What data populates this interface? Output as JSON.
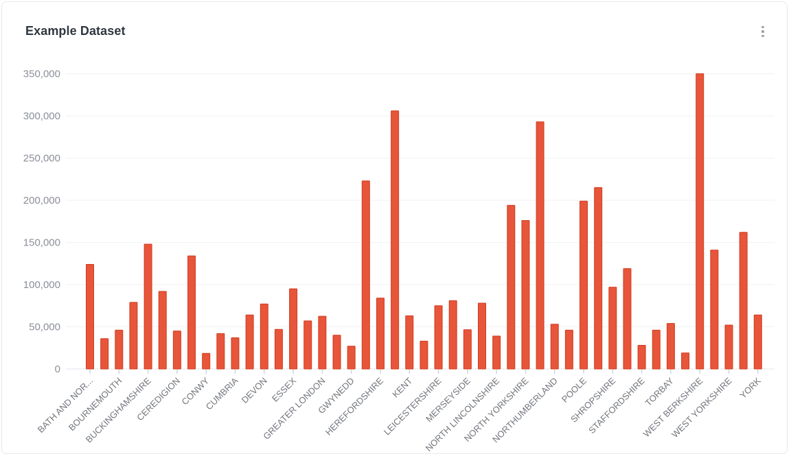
{
  "card": {
    "title": "Example Dataset",
    "menu_icon": "kebab-vertical-icon"
  },
  "chart_data": {
    "type": "bar",
    "title": "Example Dataset",
    "xlabel": "",
    "ylabel": "",
    "grid": true,
    "legend": "none",
    "x_label_rotation": -45,
    "x_label_step_note": "only every other category is labeled on the axis",
    "categories": [
      "BATH AND NOR...",
      "",
      "BOURNEMOUTH",
      "",
      "BUCKINGHAMSHIRE",
      "",
      "CEREDIGION",
      "",
      "CONWY",
      "",
      "CUMBRIA",
      "",
      "DEVON",
      "",
      "ESSEX",
      "",
      "GREATER LONDON",
      "",
      "GWYNEDD",
      "",
      "HEREFORDSHIRE",
      "",
      "KENT",
      "",
      "LEICESTERSHIRE",
      "",
      "MERSEYSIDE",
      "",
      "NORTH LINCOLNSHIRE",
      "",
      "NORTH YORKSHIRE",
      "",
      "NORTHUMBERLAND",
      "",
      "POOLE",
      "",
      "SHROPSHIRE",
      "",
      "STAFFORDSHIRE",
      "",
      "TORBAY",
      "",
      "WEST BERKSHIRE",
      "",
      "WEST YORKSHIRE",
      "",
      "YORK"
    ],
    "values": [
      124000,
      36000,
      46000,
      79000,
      148000,
      92000,
      45000,
      134000,
      18500,
      42000,
      37000,
      64000,
      77000,
      47000,
      95000,
      57000,
      62500,
      40000,
      27000,
      223000,
      84000,
      306000,
      63000,
      33000,
      75000,
      81000,
      46500,
      78000,
      39000,
      194000,
      176000,
      293000,
      53000,
      46000,
      199000,
      215000,
      97000,
      119000,
      28000,
      46000,
      54000,
      19000,
      350000,
      141000,
      52000,
      162000,
      64000
    ],
    "y_axis": {
      "min": 0,
      "max": 350000,
      "ticks": [
        0,
        50000,
        100000,
        150000,
        200000,
        250000,
        300000,
        350000
      ],
      "tick_labels": [
        "0",
        "50,000",
        "100,000",
        "150,000",
        "200,000",
        "250,000",
        "300,000",
        "350,000"
      ]
    },
    "colors": {
      "bar_fill": "#e7553a",
      "bar_stroke": "#d03d20",
      "gridline": "#f0f1f2",
      "axis_line": "#e2e6ec",
      "x_tick_mark": "#cbd5ea",
      "y_label_text": "#8a8f98",
      "x_label_text": "#72767c"
    }
  }
}
